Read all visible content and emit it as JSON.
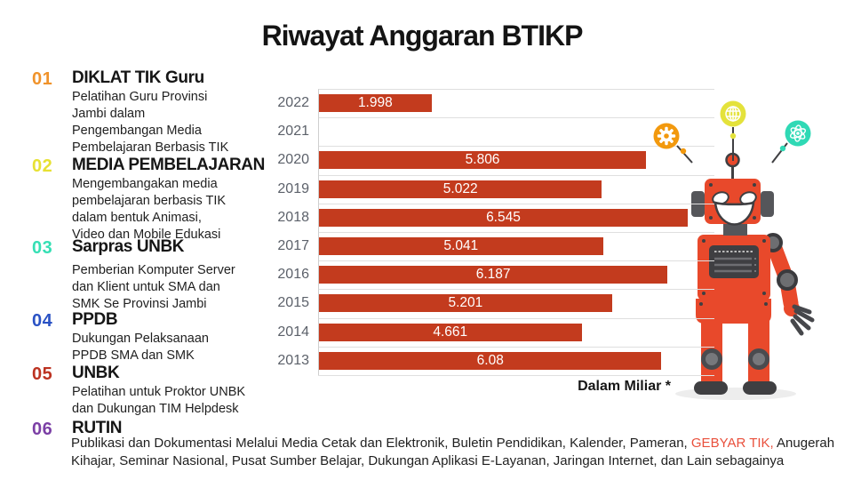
{
  "title": "Riwayat Anggaran BTIKP",
  "sections": [
    {
      "num": "01",
      "title": "DIKLAT TIK Guru",
      "color": "#f0932b",
      "desc": "Pelatihan Guru Provinsi\nJambi dalam\nPengembangan Media\nPembelajaran Berbasis TIK"
    },
    {
      "num": "02",
      "title": "MEDIA PEMBELAJARAN",
      "color": "#e7e133",
      "desc": "Mengembangakan media\npembelajaran berbasis TIK\ndalam bentuk Animasi,\nVideo dan Mobile Edukasi"
    },
    {
      "num": "03",
      "title": "Sarpras UNBK",
      "color": "#35dfb4",
      "desc": "Pemberian Komputer Server\ndan Klient untuk SMA dan\nSMK Se Provinsi Jambi"
    },
    {
      "num": "04",
      "title": "PPDB",
      "color": "#2a52c4",
      "desc": "Dukungan Pelaksanaan\nPPDB SMA dan SMK"
    },
    {
      "num": "05",
      "title": "UNBK",
      "color": "#bc3221",
      "desc": "Pelatihan untuk Proktor UNBK\ndan Dukungan TIM Helpdesk"
    },
    {
      "num": "06",
      "title": "RUTIN",
      "color": "#7b3fa5",
      "desc": ""
    }
  ],
  "footer": {
    "line1_before": "Publikasi dan Dokumentasi Melalui Media Cetak dan Elektronik, Buletin Pendidikan, Kalender, Pameran, ",
    "highlight": "GEBYAR TIK,",
    "highlight_color": "#e9503c",
    "line1_after": " Anugerah",
    "line2": "Kihajar, Seminar Nasional, Pusat Sumber Belajar, Dukungan Aplikasi E-Layanan, Jaringan Internet, dan Lain sebagainya"
  },
  "chart_data": {
    "type": "bar",
    "orientation": "horizontal",
    "categories": [
      "2022",
      "2021",
      "2020",
      "2019",
      "2018",
      "2017",
      "2016",
      "2015",
      "2014",
      "2013"
    ],
    "values": [
      1.998,
      0,
      5.806,
      5.022,
      6.545,
      5.041,
      6.187,
      5.201,
      4.661,
      6.08
    ],
    "labels": [
      "1.998",
      "",
      "5.806",
      "5.022",
      "6.545",
      "5.041",
      "6.187",
      "5.201",
      "4.661",
      "6.08"
    ],
    "title": "Riwayat Anggaran BTIKP",
    "xlabel": "",
    "ylabel": "",
    "xlim": [
      0,
      6.6
    ],
    "grid": true,
    "legend": "none",
    "note": "Dalam Miliar *",
    "bar_color": "#c33b1e",
    "label_color": "#ffffff",
    "axis_text_color": "#5c616a"
  },
  "decor": {
    "robot": "robot-mascot-illustration",
    "icons": [
      "gear-icon",
      "globe-icon",
      "atom-icon"
    ],
    "icon_colors": {
      "gear": "#f2990e",
      "globe": "#e4e23b",
      "atom": "#2fd9b5"
    },
    "robot_color": "#e8492b"
  }
}
